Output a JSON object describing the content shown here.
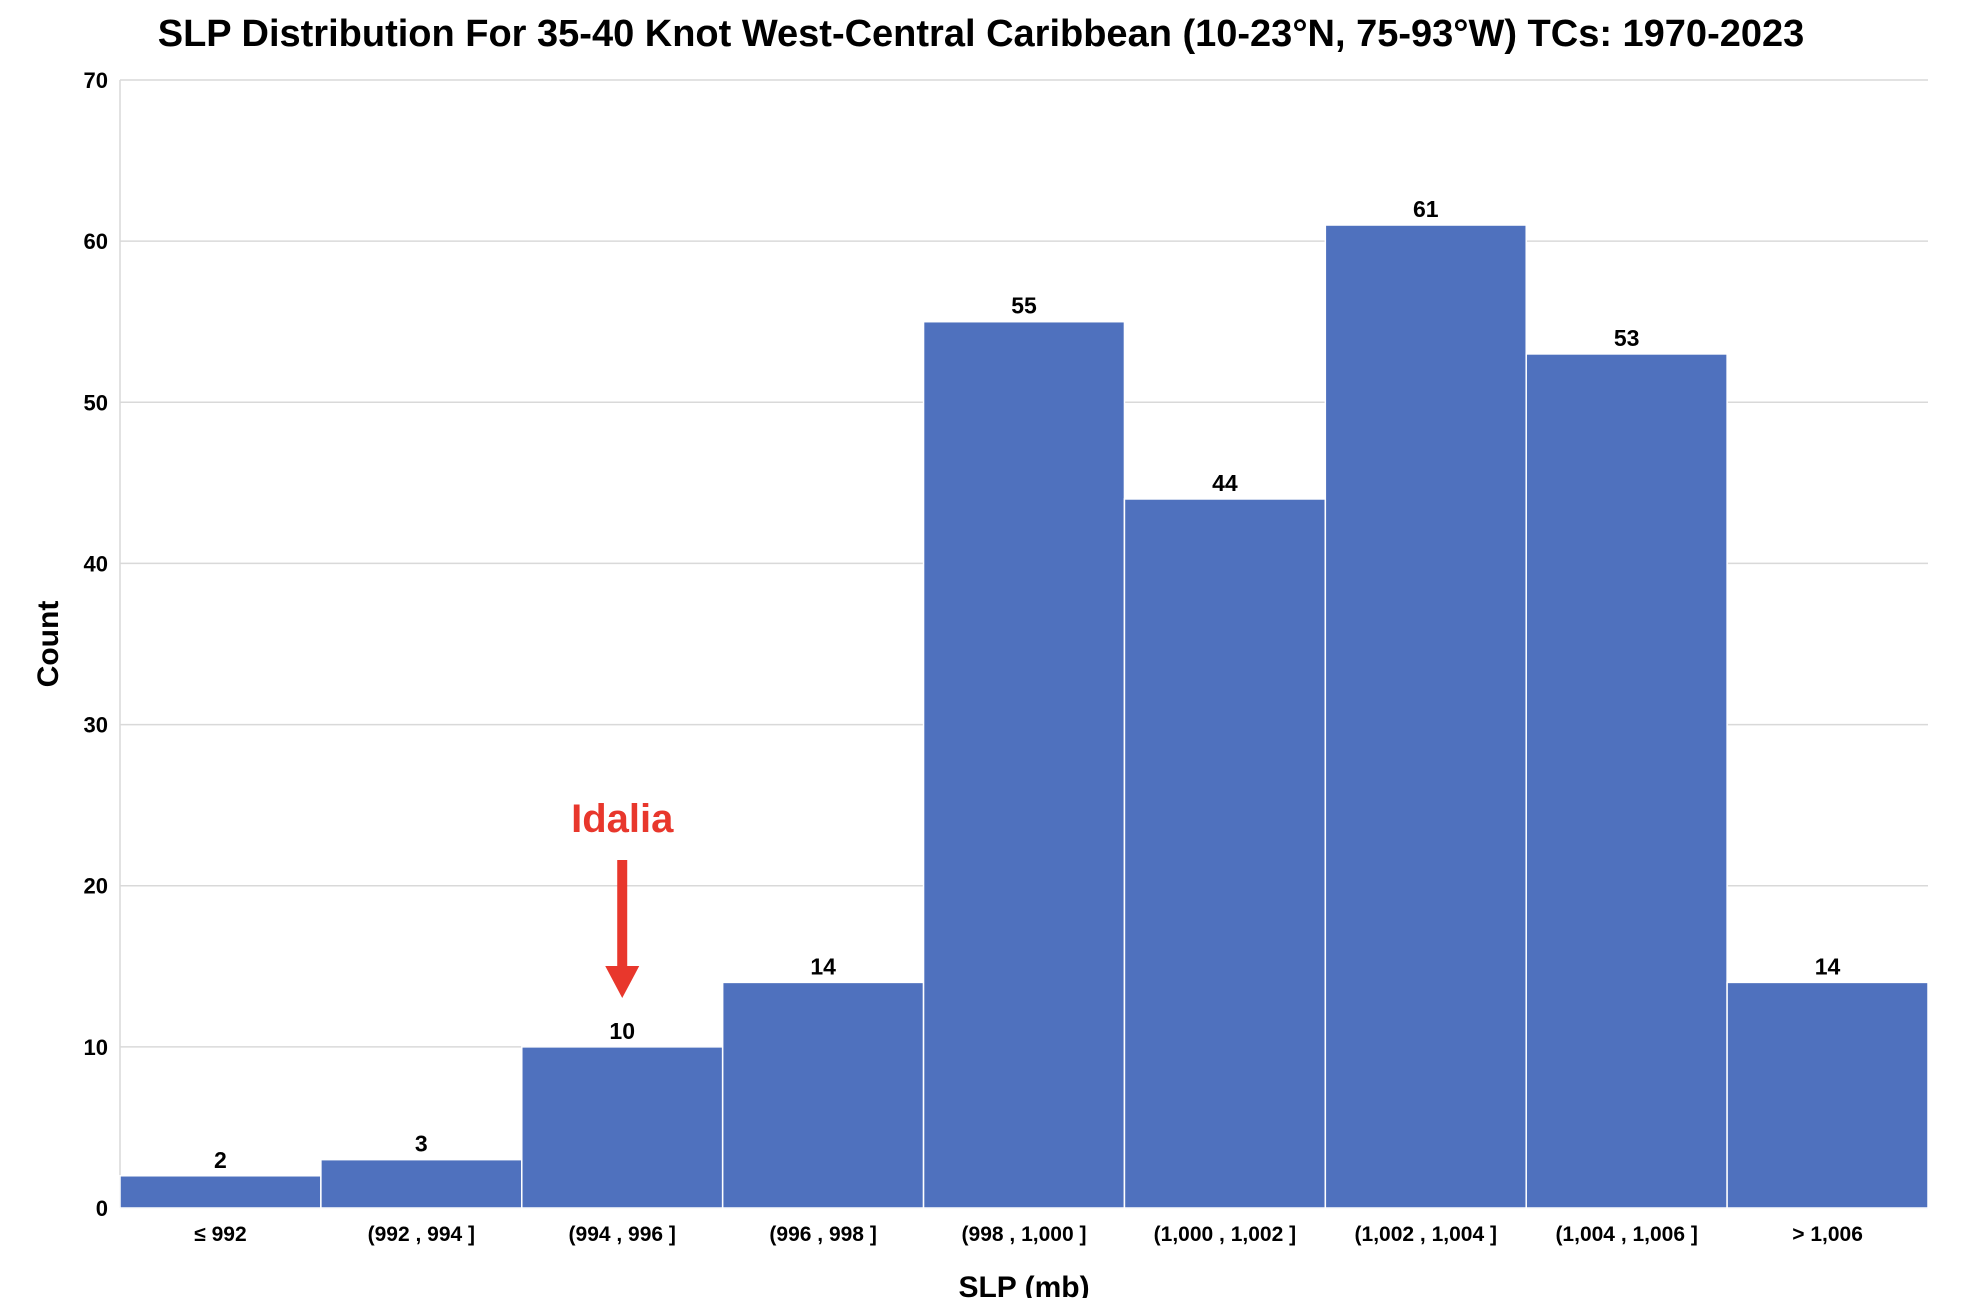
{
  "chart_data": {
    "type": "bar",
    "title": "SLP Distribution For 35-40 Knot West-Central Caribbean (10-23°N, 75-93°W) TCs: 1970-2023",
    "xlabel": "SLP (mb)",
    "ylabel": "Count",
    "categories": [
      "≤ 992",
      "(992 , 994 ]",
      "(994 , 996 ]",
      "(996 , 998 ]",
      "(998 , 1,000 ]",
      "(1,000 , 1,002 ]",
      "(1,002 , 1,004 ]",
      "(1,004 , 1,006 ]",
      "> 1,006"
    ],
    "values": [
      2,
      3,
      10,
      14,
      55,
      44,
      61,
      53,
      14
    ],
    "ylim": [
      0,
      70
    ],
    "yticks": [
      0,
      10,
      20,
      30,
      40,
      50,
      60,
      70
    ],
    "grid": true,
    "legend": "none",
    "bar_color": "#4F71BE",
    "annotation": {
      "text": "Idalia",
      "category": "(994 , 996 ]",
      "color": "#E8372C"
    }
  }
}
